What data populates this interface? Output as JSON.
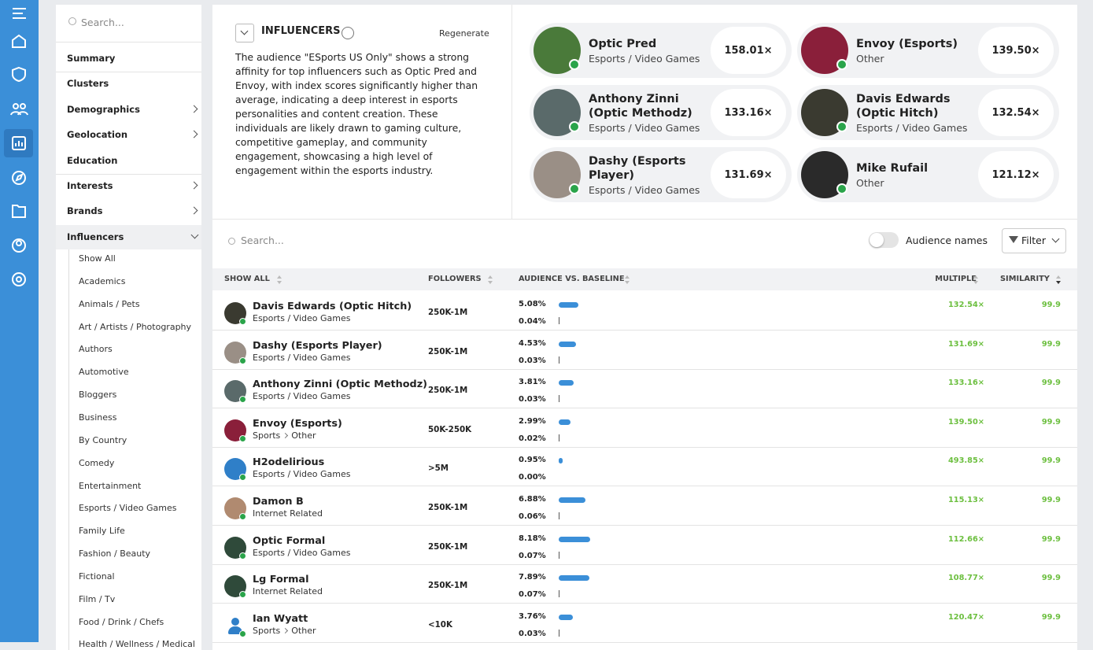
{
  "sidebar": {
    "search_placeholder": "Search...",
    "nav": [
      {
        "label": "Summary"
      },
      {
        "label": "Clusters"
      },
      {
        "label": "Demographics",
        "arrow": "right"
      },
      {
        "label": "Geolocation",
        "arrow": "right"
      },
      {
        "label": "Education"
      },
      {
        "label": "Interests",
        "arrow": "right"
      },
      {
        "label": "Brands",
        "arrow": "right"
      },
      {
        "label": "Influencers",
        "arrow": "down",
        "active": true
      }
    ],
    "subitems": [
      "Show All",
      "Academics",
      "Animals / Pets",
      "Art / Artists / Photography",
      "Authors",
      "Automotive",
      "Bloggers",
      "Business",
      "By Country",
      "Comedy",
      "Entertainment",
      "Esports / Video Games",
      "Family Life",
      "Fashion / Beauty",
      "Fictional",
      "Film / Tv",
      "Food / Drink / Chefs",
      "Health / Wellness / Medical"
    ]
  },
  "summary": {
    "title": "INFLUENCERS",
    "action": "Regenerate",
    "text": "The audience \"ESports US Only\" shows a strong affinity for top influencers such as Optic Pred and Envoy, with index scores significantly higher than average, indicating a deep interest in esports personalities and content creation. These individuals are likely drawn to gaming culture, competitive gameplay, and community engagement, showcasing a high level of engagement within the esports industry."
  },
  "top_influencers": [
    {
      "name": "Optic Pred",
      "category": "Esports / Video Games",
      "multiple": "158.01×",
      "color": "#4a7a3a"
    },
    {
      "name": "Envoy (Esports)",
      "category": "Other",
      "multiple": "139.50×",
      "color": "#8a1f3a"
    },
    {
      "name": "Anthony Zinni (Optic Methodz)",
      "category": "Esports / Video Games",
      "multiple": "133.16×",
      "color": "#5a6a6a"
    },
    {
      "name": "Davis Edwards (Optic Hitch)",
      "category": "Esports / Video Games",
      "multiple": "132.54×",
      "color": "#3a3a30"
    },
    {
      "name": "Dashy (Esports Player)",
      "category": "Esports / Video Games",
      "multiple": "131.69×",
      "color": "#9a8f86"
    },
    {
      "name": "Mike Rufail",
      "category": "Other",
      "multiple": "121.12×",
      "color": "#2a2a2a"
    }
  ],
  "table": {
    "search_placeholder": "Search...",
    "toggle_label": "Audience names",
    "filter": "Filter",
    "columns": [
      "SHOW ALL",
      "FOLLOWERS",
      "AUDIENCE VS. BASELINE",
      "MULTIPLE",
      "SIMILARITY"
    ],
    "rows": [
      {
        "name": "Davis Edwards (Optic Hitch)",
        "category": [
          "Esports / Video Games"
        ],
        "followers": "250K-1M",
        "audience": "5.08%",
        "baseline": "0.04%",
        "multiple": "132.54×",
        "similarity": "99.9",
        "color": "#3a3a30"
      },
      {
        "name": "Dashy (Esports Player)",
        "category": [
          "Esports / Video Games"
        ],
        "followers": "250K-1M",
        "audience": "4.53%",
        "baseline": "0.03%",
        "multiple": "131.69×",
        "similarity": "99.9",
        "color": "#9a8f86"
      },
      {
        "name": "Anthony Zinni (Optic Methodz)",
        "category": [
          "Esports / Video Games"
        ],
        "followers": "250K-1M",
        "audience": "3.81%",
        "baseline": "0.03%",
        "multiple": "133.16×",
        "similarity": "99.9",
        "color": "#5a6a6a"
      },
      {
        "name": "Envoy (Esports)",
        "category": [
          "Sports",
          "Other"
        ],
        "followers": "50K-250K",
        "audience": "2.99%",
        "baseline": "0.02%",
        "multiple": "139.50×",
        "similarity": "99.9",
        "color": "#8a1f3a"
      },
      {
        "name": "H2odelirious",
        "category": [
          "Esports / Video Games"
        ],
        "followers": ">5M",
        "audience": "0.95%",
        "baseline": "0.00%",
        "multiple": "493.85×",
        "similarity": "99.9",
        "color": "#2f7fc8"
      },
      {
        "name": "Damon B",
        "category": [
          "Internet Related"
        ],
        "followers": "250K-1M",
        "audience": "6.88%",
        "baseline": "0.06%",
        "multiple": "115.13×",
        "similarity": "99.9",
        "color": "#b08a70"
      },
      {
        "name": "Optic Formal",
        "category": [
          "Esports / Video Games"
        ],
        "followers": "250K-1M",
        "audience": "8.18%",
        "baseline": "0.07%",
        "multiple": "112.66×",
        "similarity": "99.9",
        "color": "#2f4a3a"
      },
      {
        "name": "Lg Formal",
        "category": [
          "Internet Related"
        ],
        "followers": "250K-1M",
        "audience": "7.89%",
        "baseline": "0.07%",
        "multiple": "108.77×",
        "similarity": "99.9",
        "color": "#2f4a3a"
      },
      {
        "name": "Ian Wyatt",
        "category": [
          "Sports",
          "Other"
        ],
        "followers": "<10K",
        "audience": "3.76%",
        "baseline": "0.03%",
        "multiple": "120.47×",
        "similarity": "99.9",
        "color": "#ffffff"
      }
    ]
  }
}
